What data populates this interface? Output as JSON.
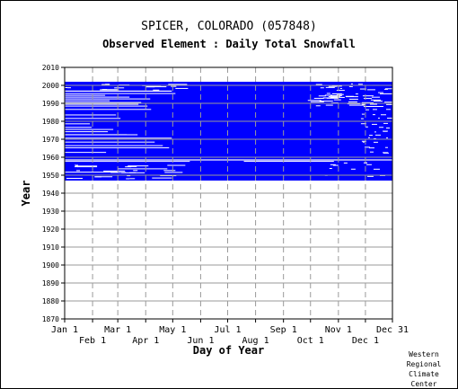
{
  "title": "SPICER, COLORADO    (057848)",
  "subtitle": "Observed Element : Daily Total Snowfall",
  "credit": [
    "Western",
    "Regional",
    "Climate",
    "Center"
  ],
  "colors": {
    "data": "#0000ff",
    "grid": "#9a9a9a",
    "axis": "#000000",
    "background": "#ffffff"
  },
  "chart_data": {
    "type": "heatmap",
    "title": "SPICER, COLORADO    (057848)",
    "subtitle": "Observed Element : Daily Total Snowfall",
    "xlabel": "Day of Year",
    "ylabel": "Year",
    "xlim": [
      "Jan 1",
      "Dec 31"
    ],
    "ylim": [
      1870,
      2010
    ],
    "grid": true,
    "x_ticks_upper": [
      "Jan 1",
      "Mar 1",
      "May 1",
      "Jul 1",
      "Sep 1",
      "Nov 1",
      "Dec 31"
    ],
    "x_ticks_lower": [
      "Feb 1",
      "Apr 1",
      "Jun 1",
      "Aug 1",
      "Oct 1",
      "Dec 1"
    ],
    "x_tick_days": {
      "Jan 1": 1,
      "Feb 1": 32,
      "Mar 1": 60,
      "Apr 1": 91,
      "May 1": 121,
      "Jun 1": 152,
      "Jul 1": 182,
      "Aug 1": 213,
      "Sep 1": 244,
      "Oct 1": 274,
      "Nov 1": 305,
      "Dec 1": 335,
      "Dec 31": 365
    },
    "y_ticks": [
      1870,
      1880,
      1890,
      1900,
      1910,
      1920,
      1930,
      1940,
      1950,
      1960,
      1970,
      1980,
      1990,
      2000,
      2010
    ],
    "observed_year_range": [
      1947,
      2002
    ],
    "series": [
      {
        "legend": "observed days (blue)",
        "year_spans": [
          {
            "years": [
              1947,
              1958
            ],
            "days": [
              1,
              365
            ],
            "coverage": "mostly observed, scattered gaps"
          },
          {
            "years": [
              1958,
              1959
            ],
            "days": [
              1,
              365
            ],
            "coverage": "largely missing"
          },
          {
            "years": [
              1959,
              1988
            ],
            "days": [
              1,
              365
            ],
            "coverage": "mostly observed, gaps in winter months"
          },
          {
            "years": [
              1988,
              1996
            ],
            "days": [
              1,
              365
            ],
            "coverage": "patchy in Jan-Apr, complete in summer"
          },
          {
            "years": [
              1996,
              2002
            ],
            "days": [
              1,
              365
            ],
            "coverage": "mostly observed"
          }
        ]
      }
    ]
  }
}
